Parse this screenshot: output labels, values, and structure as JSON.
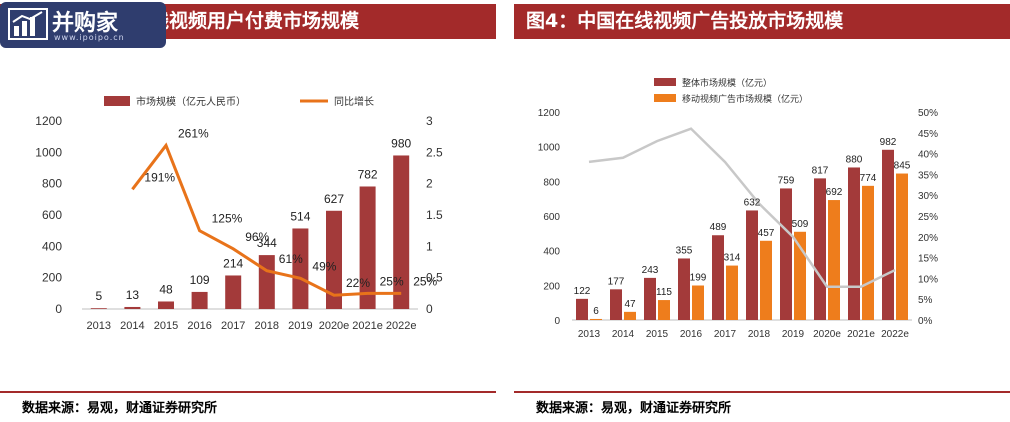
{
  "panels": {
    "left": {
      "title": "线视频用户付费市场规模",
      "source": "数据来源：易观，财通证券研究所"
    },
    "right": {
      "title": "图4：中国在线视频广告投放市场规模",
      "source": "数据来源：易观，财通证券研究所"
    }
  },
  "logo": {
    "text": "并购家",
    "url": "www.ipoipo.cn"
  },
  "colors": {
    "title_bar": "#a32a2a",
    "bar": "#a33a3a",
    "bar2": "#ee7d1c",
    "line_left": "#e8731a",
    "line_right": "#c8c8c8"
  },
  "chart_data": [
    {
      "type": "bar",
      "categories": [
        "2013",
        "2014",
        "2015",
        "2016",
        "2017",
        "2018",
        "2019",
        "2020e",
        "2021e",
        "2022e"
      ],
      "series": [
        {
          "name": "市场规模（亿元人民币）",
          "axis": "left",
          "type": "bar",
          "values": [
            5,
            13,
            48,
            109,
            214,
            344,
            514,
            627,
            782,
            980
          ],
          "labels": [
            "5",
            "13",
            "48",
            "109",
            "214",
            "344",
            "514",
            "627",
            "782",
            "980"
          ]
        },
        {
          "name": "同比增长",
          "axis": "right",
          "type": "line",
          "values": [
            null,
            1.91,
            2.61,
            1.25,
            0.96,
            0.61,
            0.49,
            0.22,
            0.25,
            0.25
          ],
          "labels": [
            null,
            "191%",
            "261%",
            "125%",
            "96%",
            "61%",
            "49%",
            "22%",
            "25%",
            "25%"
          ]
        }
      ],
      "ylim": [
        0,
        1200
      ],
      "yticks": [
        "0",
        "200",
        "400",
        "600",
        "800",
        "1000",
        "1200"
      ],
      "y2lim": [
        0,
        3
      ],
      "y2ticks": [
        "0",
        "0.5",
        "1",
        "1.5",
        "2",
        "2.5",
        "3"
      ],
      "legend_position": "top"
    },
    {
      "type": "bar",
      "categories": [
        "2013",
        "2014",
        "2015",
        "2016",
        "2017",
        "2018",
        "2019",
        "2020e",
        "2021e",
        "2022e"
      ],
      "series": [
        {
          "name": "整体市场规模（亿元）",
          "axis": "left",
          "type": "bar",
          "values": [
            122,
            177,
            243,
            355,
            489,
            632,
            759,
            817,
            880,
            982
          ],
          "labels": [
            "122",
            "177",
            "243",
            "355",
            "489",
            "632",
            "759",
            "817",
            "880",
            "982"
          ]
        },
        {
          "name": "移动视频广告市场规模（亿元）",
          "axis": "left",
          "type": "bar",
          "values": [
            6,
            47,
            115,
            199,
            314,
            457,
            509,
            692,
            774,
            845
          ],
          "labels": [
            "6",
            "47",
            "115",
            "199",
            "314",
            "457",
            "509",
            "692",
            "774",
            "845"
          ]
        },
        {
          "name": "",
          "axis": "right",
          "type": "line",
          "values": [
            0.38,
            0.39,
            0.43,
            0.46,
            0.38,
            0.28,
            0.2,
            0.08,
            0.08,
            0.12
          ]
        }
      ],
      "ylim": [
        0,
        1200
      ],
      "yticks": [
        "0",
        "200",
        "400",
        "600",
        "800",
        "1000",
        "1200"
      ],
      "y2lim": [
        0,
        0.5
      ],
      "y2ticks": [
        "0%",
        "5%",
        "10%",
        "15%",
        "20%",
        "25%",
        "30%",
        "35%",
        "40%",
        "45%",
        "50%"
      ],
      "legend_position": "top"
    }
  ]
}
